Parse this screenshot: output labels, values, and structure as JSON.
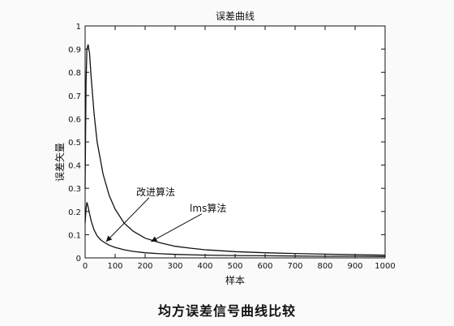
{
  "figure": {
    "caption": "均方误差信号曲线比较"
  },
  "chart_data": {
    "type": "line",
    "title": "误差曲线",
    "xlabel": "样本",
    "ylabel": "误差矢量",
    "xlim": [
      0,
      1000
    ],
    "ylim": [
      0,
      1
    ],
    "x_ticks": [
      0,
      100,
      200,
      300,
      400,
      500,
      600,
      700,
      800,
      900,
      1000
    ],
    "y_ticks": [
      0,
      0.1,
      0.2,
      0.3,
      0.4,
      0.5,
      0.6,
      0.7,
      0.8,
      0.9,
      1
    ],
    "grid": false,
    "series": [
      {
        "name": "lms算法",
        "color": "#111111",
        "x": [
          0,
          3,
          6,
          10,
          15,
          20,
          30,
          40,
          60,
          80,
          100,
          130,
          160,
          200,
          250,
          300,
          350,
          400,
          500,
          600,
          700,
          800,
          900,
          1000
        ],
        "y": [
          0.3,
          0.75,
          0.9,
          0.92,
          0.88,
          0.78,
          0.62,
          0.5,
          0.36,
          0.27,
          0.21,
          0.15,
          0.115,
          0.085,
          0.065,
          0.05,
          0.042,
          0.035,
          0.027,
          0.022,
          0.019,
          0.016,
          0.014,
          0.012
        ]
      },
      {
        "name": "改进算法",
        "color": "#111111",
        "x": [
          0,
          3,
          6,
          10,
          15,
          20,
          30,
          40,
          50,
          60,
          80,
          100,
          130,
          160,
          200,
          250,
          300,
          400,
          500,
          600,
          700,
          800,
          900,
          1000
        ],
        "y": [
          0.15,
          0.21,
          0.24,
          0.22,
          0.19,
          0.16,
          0.12,
          0.095,
          0.08,
          0.07,
          0.055,
          0.045,
          0.035,
          0.028,
          0.022,
          0.018,
          0.015,
          0.012,
          0.01,
          0.009,
          0.008,
          0.007,
          0.007,
          0.006
        ]
      }
    ],
    "annotations": [
      {
        "text": "改进算法",
        "target_series": 1,
        "target_x": 70,
        "target_y": 0.07,
        "label_x": 235,
        "label_y": 0.27
      },
      {
        "text": "lms算法",
        "target_series": 0,
        "target_x": 220,
        "target_y": 0.07,
        "label_x": 410,
        "label_y": 0.2
      }
    ]
  }
}
